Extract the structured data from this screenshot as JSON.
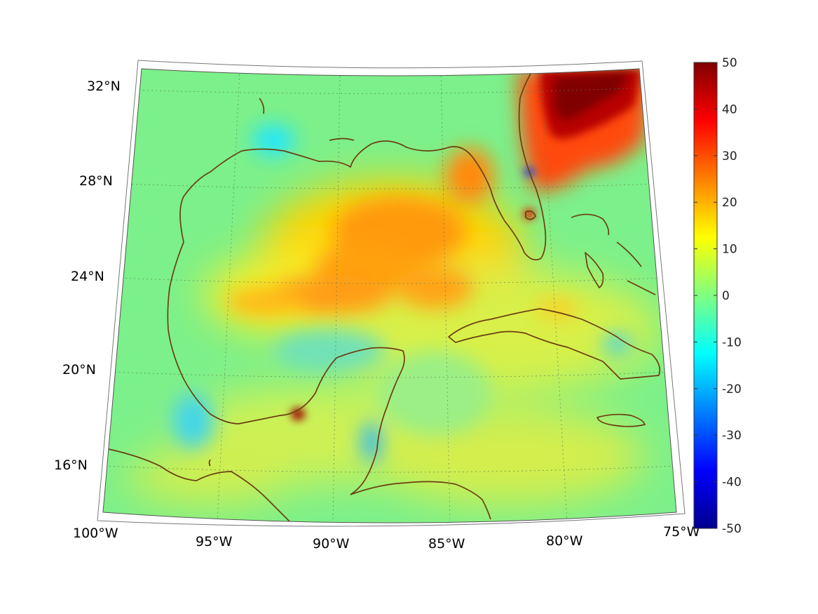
{
  "map": {
    "region": "Gulf of Mexico and Caribbean",
    "lat_labels": [
      "32°N",
      "28°N",
      "24°N",
      "20°N",
      "16°N"
    ],
    "lon_labels": [
      "100°W",
      "95°W",
      "90°W",
      "85°W",
      "80°W",
      "75°W"
    ],
    "lat_values": [
      32,
      28,
      24,
      20,
      16
    ],
    "lon_values": [
      -100,
      -95,
      -90,
      -85,
      -80,
      -75
    ],
    "extent": {
      "lon_min": -100,
      "lon_max": -75,
      "lat_min": 14,
      "lat_max": 33
    },
    "coastline_color": "#6b3f12",
    "grid": "dotted"
  },
  "colorbar": {
    "min": -50,
    "max": 50,
    "tick_values": [
      50,
      40,
      30,
      20,
      10,
      0,
      -10,
      -20,
      -30,
      -40,
      -50
    ],
    "tick_labels": [
      "50",
      "40",
      "30",
      "20",
      "10",
      "0",
      "-10",
      "-20",
      "-30",
      "-40",
      "-50"
    ],
    "colormap": "jet",
    "colors": [
      "#00008f",
      "#0000ff",
      "#0080ff",
      "#00ffff",
      "#80ff80",
      "#ffff00",
      "#ff8000",
      "#ff0000",
      "#800000"
    ]
  }
}
